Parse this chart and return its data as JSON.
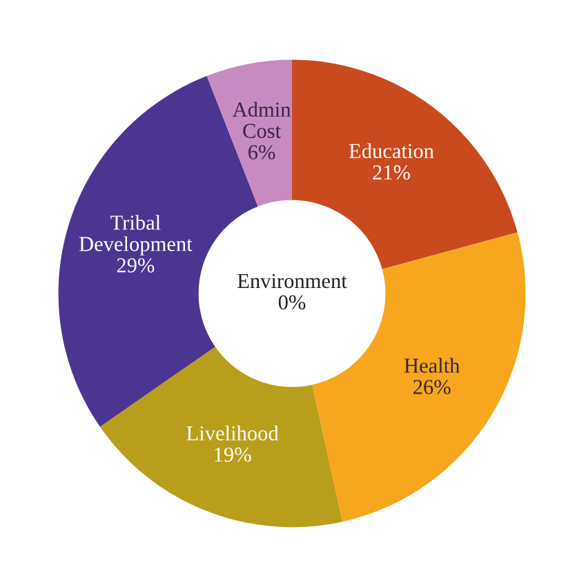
{
  "chart_data": {
    "type": "donut",
    "categories": [
      "Education",
      "Health",
      "Livelihood",
      "Tribal Development",
      "Admin Cost",
      "Environment"
    ],
    "values": [
      21,
      26,
      19,
      29,
      6,
      0
    ],
    "value_labels": [
      "21%",
      "26%",
      "19%",
      "29%",
      "6%",
      "0%"
    ],
    "colors": [
      "#c94a1f",
      "#f6a71d",
      "#b99e1b",
      "#4b3591",
      "#c78bc1",
      "#ffffff"
    ]
  }
}
